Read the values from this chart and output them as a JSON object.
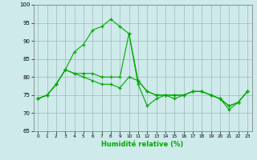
{
  "xlabel": "Humidité relative (%)",
  "xlim": [
    -0.5,
    23.5
  ],
  "ylim": [
    65,
    100
  ],
  "yticks": [
    65,
    70,
    75,
    80,
    85,
    90,
    95,
    100
  ],
  "xticks": [
    0,
    1,
    2,
    3,
    4,
    5,
    6,
    7,
    8,
    9,
    10,
    11,
    12,
    13,
    14,
    15,
    16,
    17,
    18,
    19,
    20,
    21,
    22,
    23
  ],
  "bg_color": "#ceeaea",
  "grid_color": "#a0b8b8",
  "line_color": "#00aa00",
  "line1": [
    74,
    75,
    78,
    82,
    87,
    89,
    93,
    94,
    96,
    94,
    92,
    78,
    72,
    74,
    75,
    74,
    75,
    76,
    76,
    75,
    74,
    71,
    73,
    76
  ],
  "line2": [
    74,
    75,
    78,
    82,
    81,
    81,
    81,
    80,
    80,
    80,
    92,
    79,
    76,
    75,
    75,
    75,
    75,
    76,
    76,
    75,
    74,
    72,
    73,
    76
  ],
  "line3": [
    74,
    75,
    78,
    82,
    81,
    80,
    79,
    78,
    78,
    77,
    80,
    79,
    76,
    75,
    75,
    75,
    75,
    76,
    76,
    75,
    74,
    72,
    73,
    76
  ]
}
